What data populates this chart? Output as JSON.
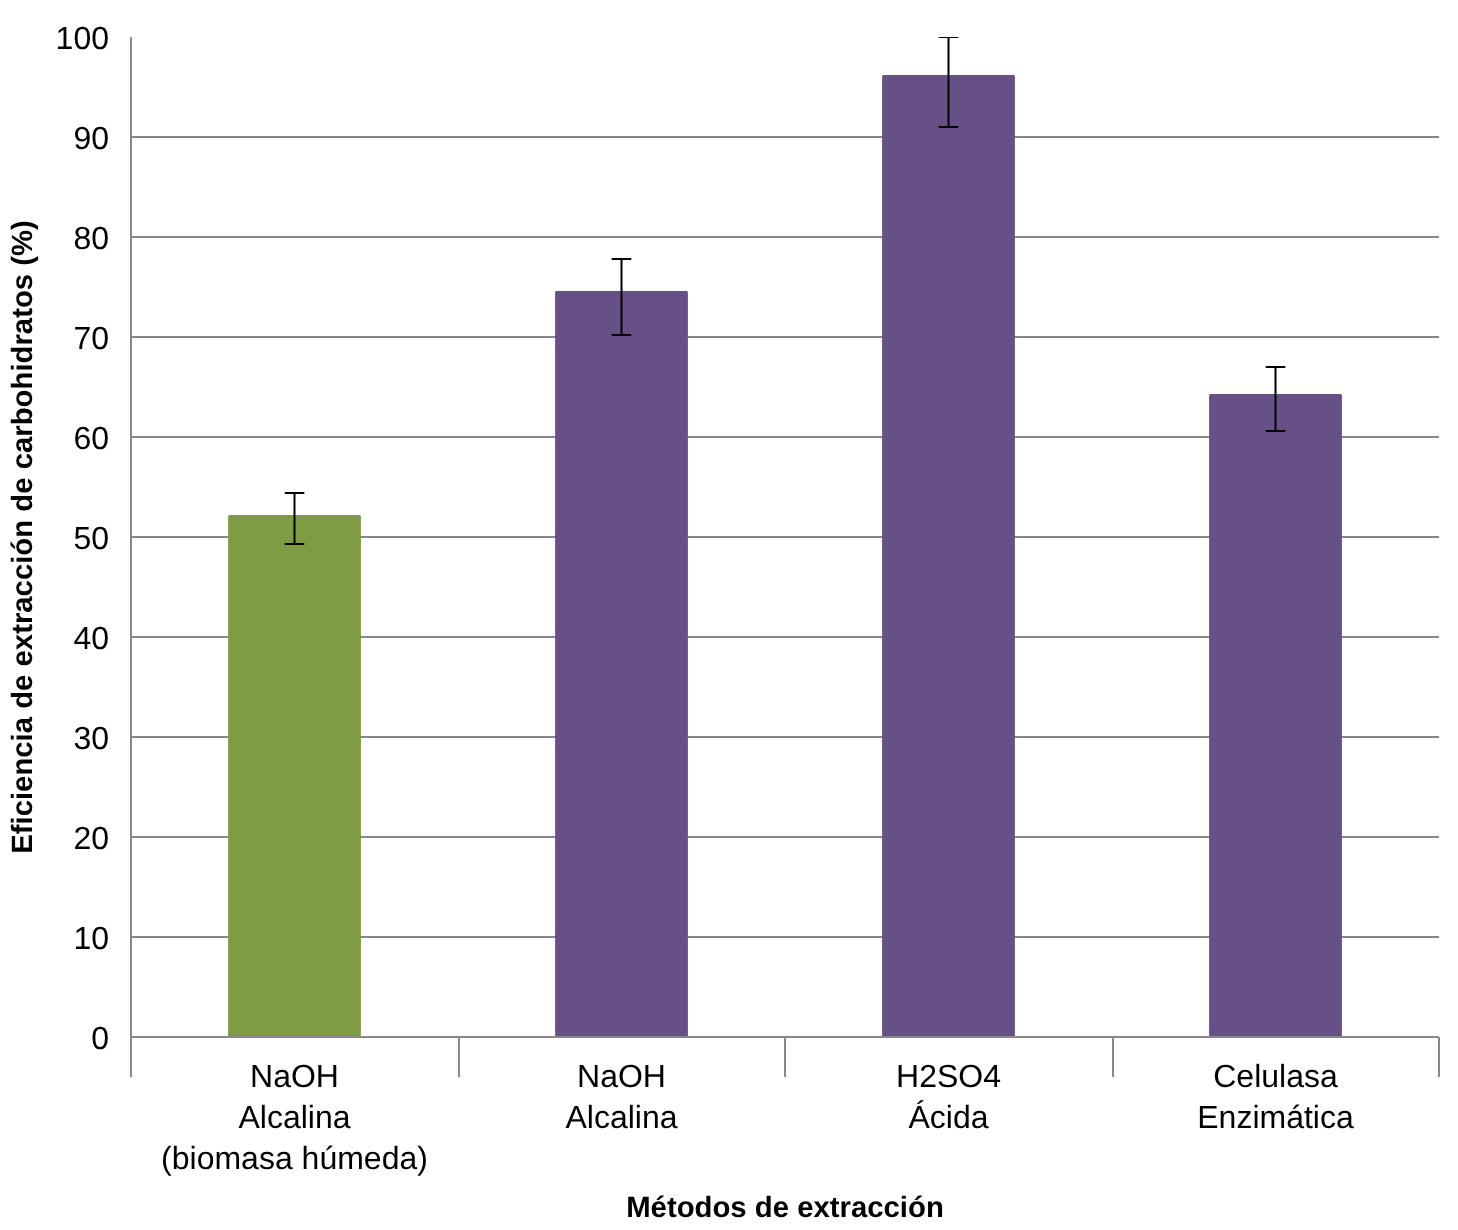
{
  "chart_data": {
    "type": "bar",
    "xlabel": "Métodos de extracción",
    "ylabel": "Eficiencia de extracción de carbohidratos (%)",
    "categories": [
      "NaOH\nAlcalina\n(biomasa húmeda)",
      "NaOH\nAlcalina",
      "H2SO4\nÁcida",
      "Celulasa\nEnzimática"
    ],
    "values": [
      52.1,
      74.5,
      96.1,
      64.2
    ],
    "colors": [
      "#7f9c43",
      "#675086",
      "#675086",
      "#675086"
    ],
    "errors": [
      [
        49.3,
        54.4
      ],
      [
        70.2,
        77.8
      ],
      [
        91.0,
        100
      ],
      [
        60.6,
        67.0
      ]
    ],
    "ylim": [
      0,
      100
    ],
    "yticks": [
      0,
      10,
      20,
      30,
      40,
      50,
      60,
      70,
      80,
      90,
      100
    ],
    "grid": "y"
  }
}
